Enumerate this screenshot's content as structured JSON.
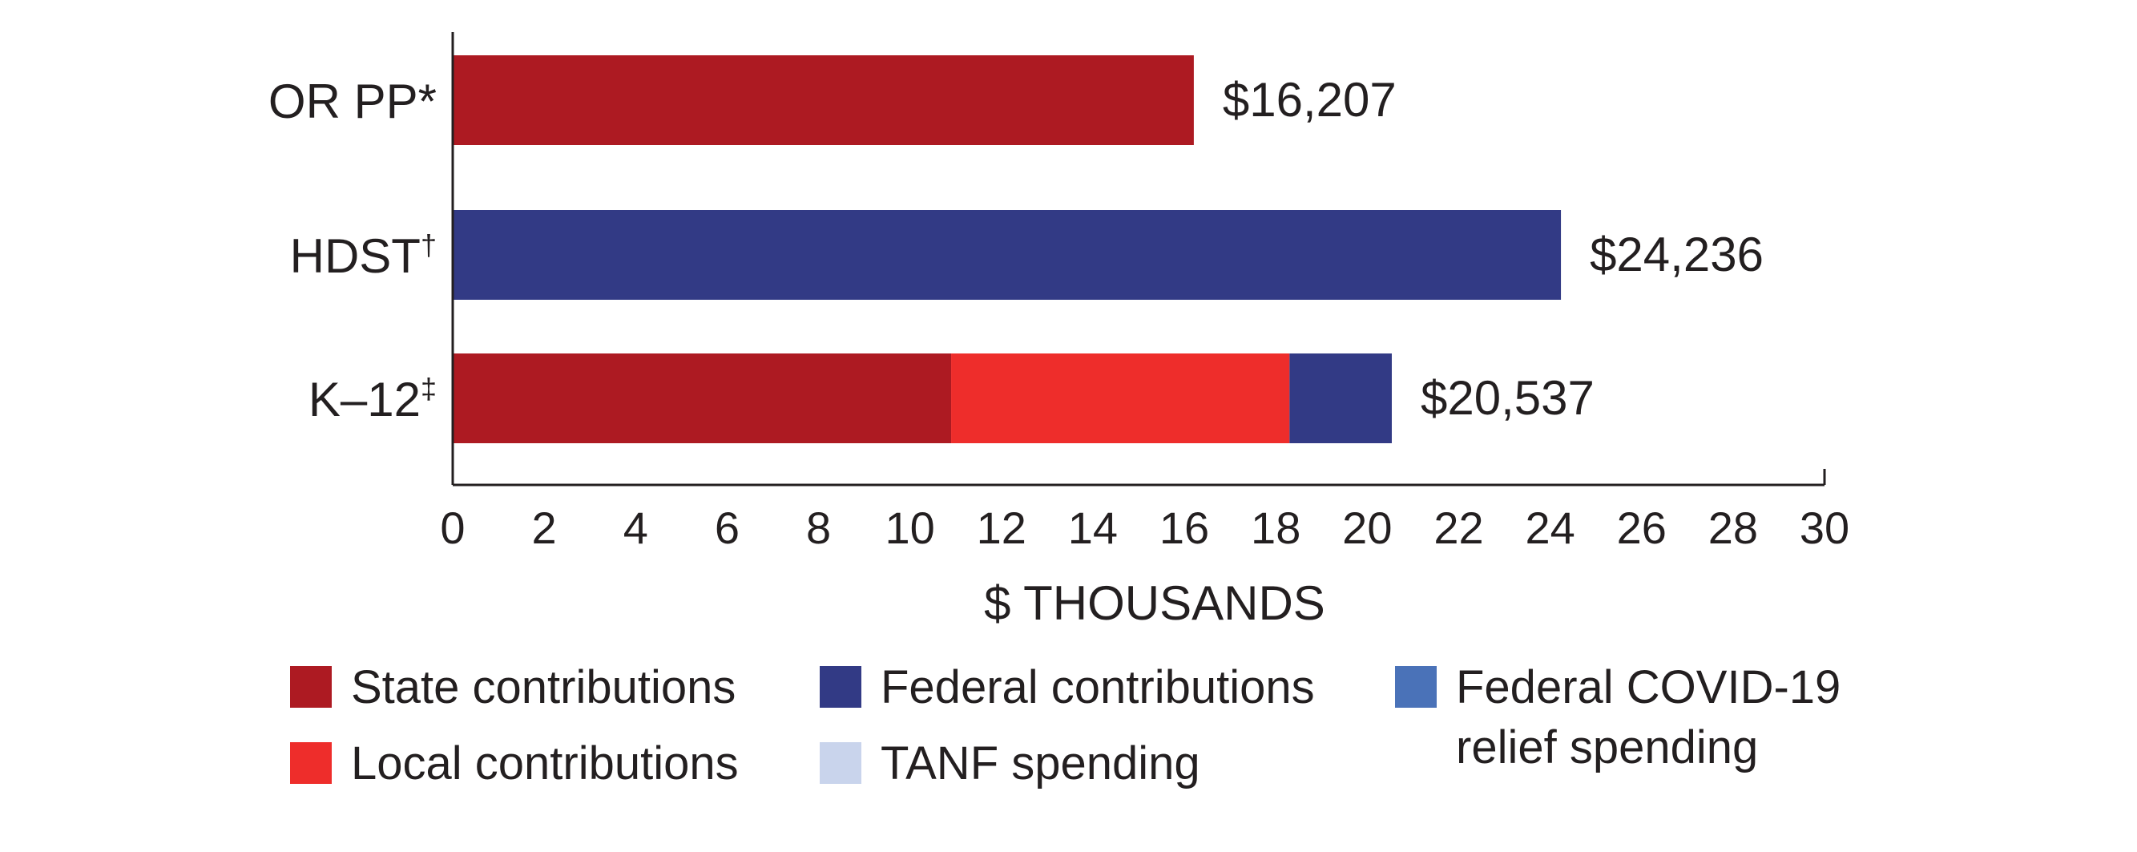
{
  "chart_data": {
    "type": "bar",
    "orientation": "horizontal",
    "stacked": true,
    "title": "",
    "xlabel": "$ THOUSANDS",
    "ylabel": "",
    "xlim": [
      0,
      30
    ],
    "xticks": [
      0,
      2,
      4,
      6,
      8,
      10,
      12,
      14,
      16,
      18,
      20,
      22,
      24,
      26,
      28,
      30
    ],
    "grid": false,
    "legend_position": "bottom",
    "categories": [
      {
        "label": "OR PP",
        "marker": "*",
        "total_label": "$16,207"
      },
      {
        "label": "HDST",
        "marker": "†",
        "total_label": "$24,236"
      },
      {
        "label": "K–12",
        "marker": "‡",
        "total_label": "$20,537"
      }
    ],
    "series": [
      {
        "name": "State contributions",
        "color": "#ad1a22",
        "values": [
          16.207,
          0,
          10.9
        ]
      },
      {
        "name": "Local contributions",
        "color": "#ee2d2b",
        "values": [
          0,
          0,
          7.4
        ]
      },
      {
        "name": "Federal contributions",
        "color": "#323a85",
        "values": [
          0,
          24.236,
          2.237
        ]
      },
      {
        "name": "TANF spending",
        "color": "#c9d4ec",
        "values": [
          0,
          0,
          0
        ]
      },
      {
        "name": "Federal COVID-19 relief spending",
        "color": "#4a72b8",
        "values": [
          0,
          0,
          0
        ]
      }
    ],
    "legend": [
      {
        "lines": [
          "State contributions"
        ],
        "color": "#ad1a22"
      },
      {
        "lines": [
          "Local contributions"
        ],
        "color": "#ee2d2b"
      },
      {
        "lines": [
          "Federal contributions"
        ],
        "color": "#323a85"
      },
      {
        "lines": [
          "TANF spending"
        ],
        "color": "#c9d4ec"
      },
      {
        "lines": [
          "Federal COVID-19",
          "relief spending"
        ],
        "color": "#4a72b8"
      }
    ]
  }
}
